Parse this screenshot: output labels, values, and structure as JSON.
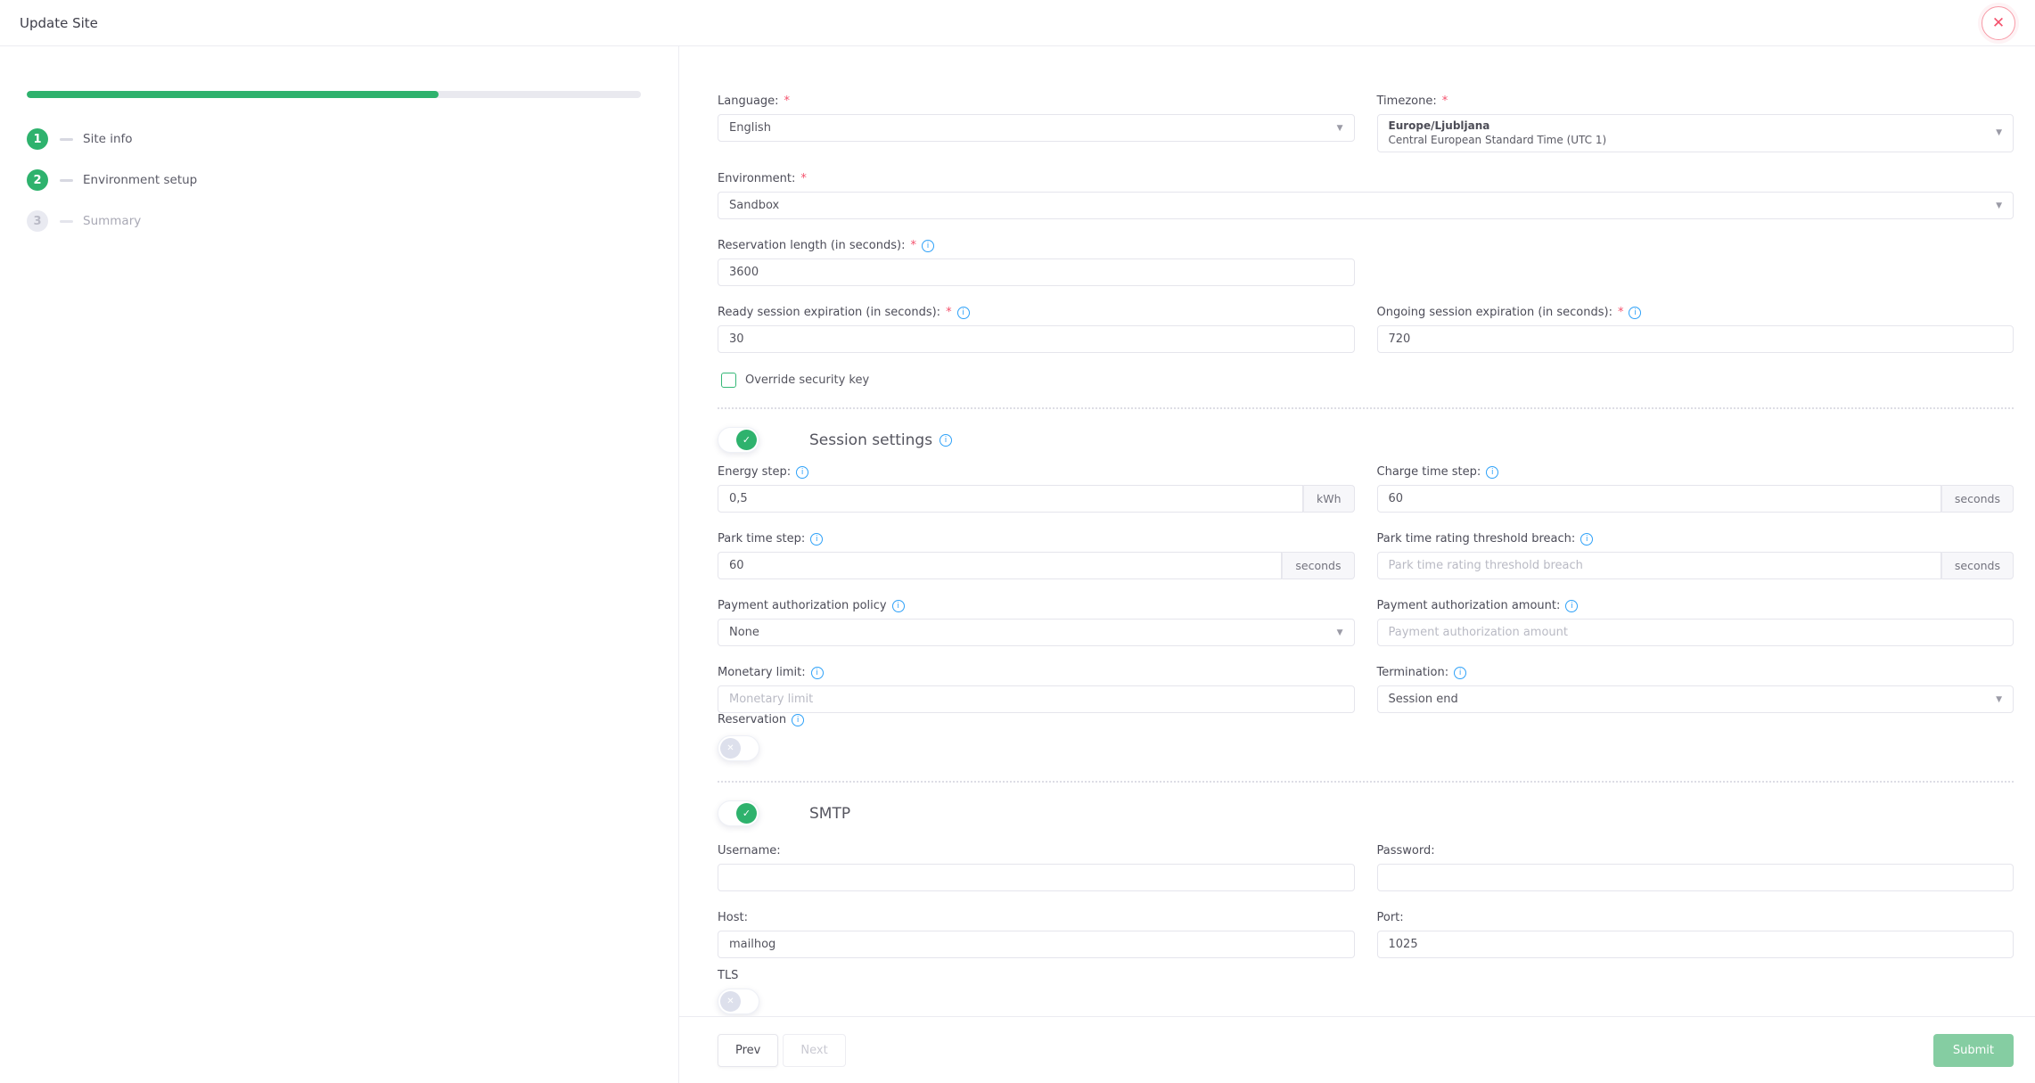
{
  "header": {
    "title": "Update Site"
  },
  "stepper": {
    "progress_percent": 67,
    "steps": [
      {
        "number": "1",
        "label": "Site info",
        "state": "complete"
      },
      {
        "number": "2",
        "label": "Environment setup",
        "state": "active"
      },
      {
        "number": "3",
        "label": "Summary",
        "state": "pending"
      }
    ]
  },
  "form": {
    "language": {
      "label": "Language:",
      "required": "*",
      "value": "English"
    },
    "timezone": {
      "label": "Timezone:",
      "required": "*",
      "value_line1": "Europe/Ljubljana",
      "value_line2": "Central European Standard Time (UTC 1)"
    },
    "environment": {
      "label": "Environment:",
      "required": "*",
      "value": "Sandbox"
    },
    "reservation_length": {
      "label": "Reservation length (in seconds):",
      "required": "*",
      "value": "3600"
    },
    "ready_session_expiration": {
      "label": "Ready session expiration (in seconds):",
      "required": "*",
      "value": "30"
    },
    "ongoing_session_expiration": {
      "label": "Ongoing session expiration (in seconds):",
      "required": "*",
      "value": "720"
    },
    "override_security_key": {
      "label": "Override security key",
      "checked": false
    },
    "session_settings": {
      "title": "Session settings",
      "enabled": true,
      "energy_step": {
        "label": "Energy step:",
        "value": "0,5",
        "suffix": "kWh"
      },
      "charge_time_step": {
        "label": "Charge time step:",
        "value": "60",
        "suffix": "seconds"
      },
      "park_time_step": {
        "label": "Park time step:",
        "value": "60",
        "suffix": "seconds"
      },
      "park_time_rating_threshold_breach": {
        "label": "Park time rating threshold breach:",
        "placeholder": "Park time rating threshold breach",
        "suffix": "seconds"
      },
      "payment_authorization_policy": {
        "label": "Payment authorization policy",
        "value": "None"
      },
      "payment_authorization_amount": {
        "label": "Payment authorization amount:",
        "placeholder": "Payment authorization amount"
      },
      "monetary_limit": {
        "label": "Monetary limit:",
        "placeholder": "Monetary limit"
      },
      "termination": {
        "label": "Termination:",
        "value": "Session end"
      },
      "reservation": {
        "label": "Reservation",
        "enabled": false
      }
    },
    "smtp": {
      "title": "SMTP",
      "enabled": true,
      "username": {
        "label": "Username:",
        "value": ""
      },
      "password": {
        "label": "Password:",
        "value": ""
      },
      "host": {
        "label": "Host:",
        "value": "mailhog"
      },
      "port": {
        "label": "Port:",
        "value": "1025"
      },
      "tls": {
        "label": "TLS",
        "enabled": false
      }
    }
  },
  "footer": {
    "prev_label": "Prev",
    "next_label": "Next",
    "submit_label": "Submit"
  },
  "colors": {
    "accent_green": "#2eb26d",
    "info_blue": "#2ea1f8",
    "danger_red": "#f4516c",
    "progress_track": "#e9e9ef"
  }
}
